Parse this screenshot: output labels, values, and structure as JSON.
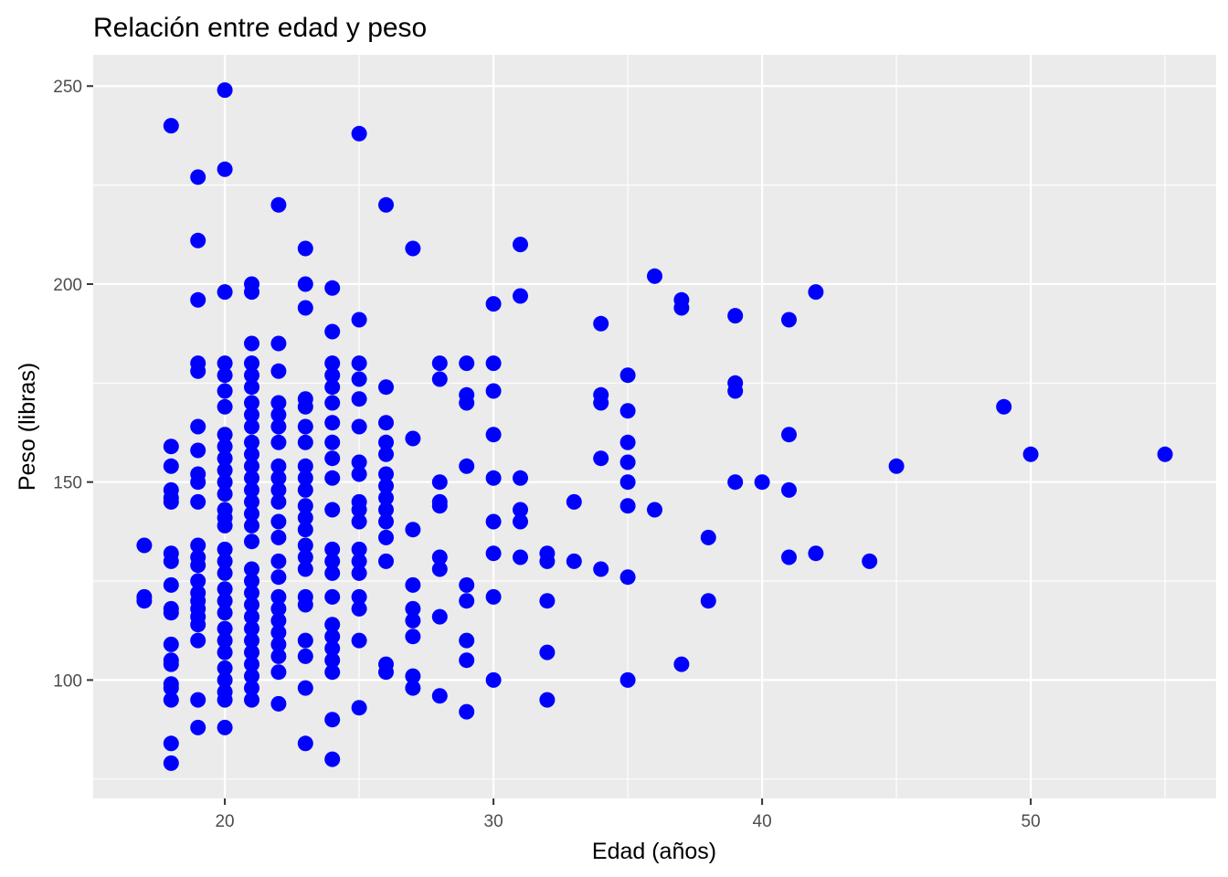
{
  "chart_data": {
    "type": "scatter",
    "title": "Relación entre edad y peso",
    "xlabel": "Edad (años)",
    "ylabel": "Peso (libras)",
    "xlim": [
      15.1,
      56.9
    ],
    "ylim": [
      70.1,
      257.9
    ],
    "xticks": [
      20,
      30,
      40,
      50
    ],
    "yticks": [
      100,
      150,
      200,
      250
    ],
    "grid": true,
    "colors": {
      "panel_background": "#EBEBEB",
      "grid": "#FFFFFF",
      "tick": "#333333",
      "tick_label": "#4D4D4D",
      "point": "#0000FF"
    },
    "points": [
      [
        17,
        134
      ],
      [
        17,
        121
      ],
      [
        17,
        120
      ],
      [
        18,
        240
      ],
      [
        18,
        159
      ],
      [
        18,
        154
      ],
      [
        18,
        148
      ],
      [
        18,
        146
      ],
      [
        18,
        145
      ],
      [
        18,
        132
      ],
      [
        18,
        130
      ],
      [
        18,
        124
      ],
      [
        18,
        118
      ],
      [
        18,
        117
      ],
      [
        18,
        109
      ],
      [
        18,
        105
      ],
      [
        18,
        104
      ],
      [
        18,
        99
      ],
      [
        18,
        98
      ],
      [
        18,
        95
      ],
      [
        18,
        84
      ],
      [
        18,
        79
      ],
      [
        19,
        227
      ],
      [
        19,
        211
      ],
      [
        19,
        196
      ],
      [
        19,
        180
      ],
      [
        19,
        178
      ],
      [
        19,
        164
      ],
      [
        19,
        158
      ],
      [
        19,
        152
      ],
      [
        19,
        150
      ],
      [
        19,
        145
      ],
      [
        19,
        134
      ],
      [
        19,
        131
      ],
      [
        19,
        129
      ],
      [
        19,
        125
      ],
      [
        19,
        122
      ],
      [
        19,
        120
      ],
      [
        19,
        118
      ],
      [
        19,
        116
      ],
      [
        19,
        114
      ],
      [
        19,
        110
      ],
      [
        19,
        95
      ],
      [
        19,
        88
      ],
      [
        20,
        249
      ],
      [
        20,
        229
      ],
      [
        20,
        198
      ],
      [
        20,
        180
      ],
      [
        20,
        177
      ],
      [
        20,
        173
      ],
      [
        20,
        169
      ],
      [
        20,
        162
      ],
      [
        20,
        159
      ],
      [
        20,
        156
      ],
      [
        20,
        153
      ],
      [
        20,
        150
      ],
      [
        20,
        147
      ],
      [
        20,
        143
      ],
      [
        20,
        141
      ],
      [
        20,
        139
      ],
      [
        20,
        133
      ],
      [
        20,
        130
      ],
      [
        20,
        127
      ],
      [
        20,
        123
      ],
      [
        20,
        120
      ],
      [
        20,
        117
      ],
      [
        20,
        113
      ],
      [
        20,
        110
      ],
      [
        20,
        107
      ],
      [
        20,
        103
      ],
      [
        20,
        100
      ],
      [
        20,
        97
      ],
      [
        20,
        95
      ],
      [
        20,
        88
      ],
      [
        21,
        200
      ],
      [
        21,
        198
      ],
      [
        21,
        185
      ],
      [
        21,
        180
      ],
      [
        21,
        177
      ],
      [
        21,
        174
      ],
      [
        21,
        170
      ],
      [
        21,
        167
      ],
      [
        21,
        164
      ],
      [
        21,
        160
      ],
      [
        21,
        157
      ],
      [
        21,
        154
      ],
      [
        21,
        151
      ],
      [
        21,
        148
      ],
      [
        21,
        145
      ],
      [
        21,
        142
      ],
      [
        21,
        139
      ],
      [
        21,
        135
      ],
      [
        21,
        128
      ],
      [
        21,
        125
      ],
      [
        21,
        122
      ],
      [
        21,
        119
      ],
      [
        21,
        116
      ],
      [
        21,
        113
      ],
      [
        21,
        110
      ],
      [
        21,
        107
      ],
      [
        21,
        104
      ],
      [
        21,
        101
      ],
      [
        21,
        98
      ],
      [
        21,
        95
      ],
      [
        22,
        220
      ],
      [
        22,
        185
      ],
      [
        22,
        178
      ],
      [
        22,
        170
      ],
      [
        22,
        167
      ],
      [
        22,
        164
      ],
      [
        22,
        160
      ],
      [
        22,
        154
      ],
      [
        22,
        151
      ],
      [
        22,
        148
      ],
      [
        22,
        145
      ],
      [
        22,
        140
      ],
      [
        22,
        136
      ],
      [
        22,
        130
      ],
      [
        22,
        126
      ],
      [
        22,
        121
      ],
      [
        22,
        118
      ],
      [
        22,
        115
      ],
      [
        22,
        112
      ],
      [
        22,
        109
      ],
      [
        22,
        106
      ],
      [
        22,
        102
      ],
      [
        22,
        94
      ],
      [
        23,
        209
      ],
      [
        23,
        200
      ],
      [
        23,
        194
      ],
      [
        23,
        171
      ],
      [
        23,
        169
      ],
      [
        23,
        164
      ],
      [
        23,
        160
      ],
      [
        23,
        154
      ],
      [
        23,
        151
      ],
      [
        23,
        148
      ],
      [
        23,
        144
      ],
      [
        23,
        141
      ],
      [
        23,
        138
      ],
      [
        23,
        134
      ],
      [
        23,
        131
      ],
      [
        23,
        128
      ],
      [
        23,
        121
      ],
      [
        23,
        119
      ],
      [
        23,
        110
      ],
      [
        23,
        106
      ],
      [
        23,
        98
      ],
      [
        23,
        84
      ],
      [
        24,
        199
      ],
      [
        24,
        188
      ],
      [
        24,
        180
      ],
      [
        24,
        177
      ],
      [
        24,
        174
      ],
      [
        24,
        170
      ],
      [
        24,
        165
      ],
      [
        24,
        160
      ],
      [
        24,
        156
      ],
      [
        24,
        151
      ],
      [
        24,
        143
      ],
      [
        24,
        133
      ],
      [
        24,
        130
      ],
      [
        24,
        127
      ],
      [
        24,
        121
      ],
      [
        24,
        114
      ],
      [
        24,
        111
      ],
      [
        24,
        108
      ],
      [
        24,
        105
      ],
      [
        24,
        102
      ],
      [
        24,
        90
      ],
      [
        24,
        80
      ],
      [
        25,
        238
      ],
      [
        25,
        191
      ],
      [
        25,
        180
      ],
      [
        25,
        176
      ],
      [
        25,
        171
      ],
      [
        25,
        164
      ],
      [
        25,
        155
      ],
      [
        25,
        152
      ],
      [
        25,
        145
      ],
      [
        25,
        143
      ],
      [
        25,
        140
      ],
      [
        25,
        133
      ],
      [
        25,
        130
      ],
      [
        25,
        127
      ],
      [
        25,
        121
      ],
      [
        25,
        118
      ],
      [
        25,
        110
      ],
      [
        25,
        93
      ],
      [
        26,
        220
      ],
      [
        26,
        174
      ],
      [
        26,
        165
      ],
      [
        26,
        160
      ],
      [
        26,
        157
      ],
      [
        26,
        152
      ],
      [
        26,
        149
      ],
      [
        26,
        146
      ],
      [
        26,
        143
      ],
      [
        26,
        140
      ],
      [
        26,
        136
      ],
      [
        26,
        130
      ],
      [
        26,
        104
      ],
      [
        26,
        102
      ],
      [
        27,
        209
      ],
      [
        27,
        161
      ],
      [
        27,
        138
      ],
      [
        27,
        124
      ],
      [
        27,
        118
      ],
      [
        27,
        115
      ],
      [
        27,
        111
      ],
      [
        27,
        101
      ],
      [
        27,
        98
      ],
      [
        28,
        180
      ],
      [
        28,
        176
      ],
      [
        28,
        150
      ],
      [
        28,
        145
      ],
      [
        28,
        144
      ],
      [
        28,
        131
      ],
      [
        28,
        128
      ],
      [
        28,
        116
      ],
      [
        28,
        96
      ],
      [
        29,
        180
      ],
      [
        29,
        172
      ],
      [
        29,
        170
      ],
      [
        29,
        154
      ],
      [
        29,
        124
      ],
      [
        29,
        120
      ],
      [
        29,
        110
      ],
      [
        29,
        105
      ],
      [
        29,
        92
      ],
      [
        30,
        195
      ],
      [
        30,
        180
      ],
      [
        30,
        173
      ],
      [
        30,
        162
      ],
      [
        30,
        151
      ],
      [
        30,
        140
      ],
      [
        30,
        132
      ],
      [
        30,
        121
      ],
      [
        30,
        100
      ],
      [
        31,
        210
      ],
      [
        31,
        197
      ],
      [
        31,
        151
      ],
      [
        31,
        143
      ],
      [
        31,
        140
      ],
      [
        31,
        131
      ],
      [
        32,
        132
      ],
      [
        32,
        130
      ],
      [
        32,
        120
      ],
      [
        32,
        107
      ],
      [
        32,
        95
      ],
      [
        33,
        145
      ],
      [
        33,
        130
      ],
      [
        34,
        190
      ],
      [
        34,
        172
      ],
      [
        34,
        170
      ],
      [
        34,
        156
      ],
      [
        34,
        128
      ],
      [
        35,
        177
      ],
      [
        35,
        168
      ],
      [
        35,
        160
      ],
      [
        35,
        155
      ],
      [
        35,
        150
      ],
      [
        35,
        144
      ],
      [
        35,
        126
      ],
      [
        35,
        100
      ],
      [
        36,
        202
      ],
      [
        36,
        143
      ],
      [
        37,
        196
      ],
      [
        37,
        194
      ],
      [
        37,
        104
      ],
      [
        38,
        136
      ],
      [
        38,
        120
      ],
      [
        39,
        192
      ],
      [
        39,
        175
      ],
      [
        39,
        173
      ],
      [
        39,
        150
      ],
      [
        40,
        150
      ],
      [
        41,
        191
      ],
      [
        41,
        162
      ],
      [
        41,
        148
      ],
      [
        41,
        131
      ],
      [
        42,
        198
      ],
      [
        42,
        132
      ],
      [
        44,
        130
      ],
      [
        45,
        154
      ],
      [
        49,
        169
      ],
      [
        50,
        157
      ],
      [
        55,
        157
      ]
    ]
  }
}
